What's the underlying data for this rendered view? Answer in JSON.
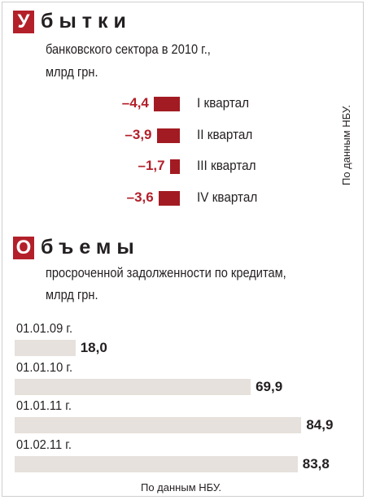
{
  "section1": {
    "initial": "У",
    "rest": "бытки",
    "subtitle_line1": "банковского сектора в 2010 г.,",
    "subtitle_line2": "млрд грн.",
    "source": "По данным НБУ."
  },
  "section2": {
    "initial": "О",
    "rest": "бъемы",
    "subtitle_line1": "просроченной задолженности по кредитам,",
    "subtitle_line2": "млрд грн.",
    "source": "По данным НБУ."
  },
  "chart_data": [
    {
      "type": "bar",
      "orientation": "horizontal",
      "title": "Убытки",
      "subtitle": "банковского сектора в 2010 г., млрд грн.",
      "categories": [
        "I квартал",
        "II квартал",
        "III квартал",
        "IV квартал"
      ],
      "values": [
        -4.4,
        -3.9,
        -1.7,
        -3.6
      ],
      "value_labels": [
        "–4,4",
        "–3,9",
        "–1,7",
        "–3,6"
      ],
      "bar_color": "#a31b22",
      "value_color": "#b3202a",
      "grid": false
    },
    {
      "type": "bar",
      "orientation": "horizontal",
      "title": "Объемы",
      "subtitle": "просроченной задолженности по кредитам, млрд грн.",
      "categories": [
        "01.01.09 г.",
        "01.01.10 г.",
        "01.01.11 г.",
        "01.02.11 г."
      ],
      "values": [
        18.0,
        69.9,
        84.9,
        83.8
      ],
      "value_labels": [
        "18,0",
        "69,9",
        "84,9",
        "83,8"
      ],
      "bar_color": "#e6e1dc",
      "grid": false
    }
  ]
}
